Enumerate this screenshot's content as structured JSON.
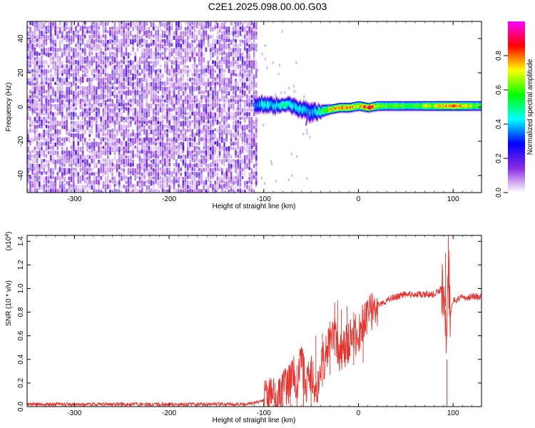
{
  "title": "C2E1.2025.098.00.00.G03",
  "chart_data": [
    {
      "type": "heatmap",
      "xlabel": "Height of straight line (km)",
      "ylabel": "Frequency (Hz)",
      "xlim": [
        -350,
        130
      ],
      "ylim": [
        -50,
        50
      ],
      "xticks": [
        -300,
        -200,
        -100,
        0,
        100
      ],
      "yticks": [
        -40,
        -20,
        0,
        20,
        40
      ],
      "noise_region_x": [
        -350,
        -108
      ],
      "signal_band": {
        "x": [
          -110,
          -100,
          -90,
          -80,
          -70,
          -60,
          -50,
          -40,
          -30,
          -20,
          -10,
          0,
          10,
          20,
          40,
          60,
          80,
          100,
          130
        ],
        "center_freq": [
          2,
          2,
          1,
          2,
          1,
          -1,
          -3,
          -2,
          -1,
          0,
          0,
          1,
          0,
          1,
          1,
          1,
          1,
          1,
          1
        ],
        "halfwidth": [
          4,
          4,
          4,
          3,
          4,
          4,
          5,
          3,
          2,
          2,
          2,
          2,
          2,
          2,
          2,
          2,
          2,
          2,
          2
        ],
        "peak_amplitude": [
          0.35,
          0.45,
          0.4,
          0.5,
          0.45,
          0.45,
          0.35,
          0.55,
          0.75,
          0.85,
          0.8,
          0.7,
          0.95,
          0.65,
          0.6,
          0.6,
          0.75,
          0.8,
          0.6
        ]
      },
      "colorbar": {
        "label": "Normalized spectral amplitude",
        "range": [
          0,
          1
        ],
        "ticks": [
          "0.0",
          "0.2",
          "0.4",
          "0.6",
          "0.8"
        ],
        "colors": [
          "#ffffff",
          "#8a2be2",
          "#0000ff",
          "#00ffff",
          "#00ff00",
          "#ffff00",
          "#ff0000",
          "#ff00ff"
        ]
      }
    },
    {
      "type": "line",
      "xlabel": "Height of straight line (km)",
      "ylabel": "SNR (10 * v/v)",
      "scale_label": "(x10",
      "scale_exponent": "4",
      "scale_suffix": ")",
      "xlim": [
        -350,
        130
      ],
      "ylim": [
        0,
        1.45
      ],
      "xticks": [
        -300,
        -200,
        -100,
        0,
        100
      ],
      "yticks": [
        "0.0",
        "0.2",
        "0.4",
        "0.6",
        "0.8",
        "1.0",
        "1.2",
        "1.4"
      ],
      "color": "#e8322b",
      "series": [
        {
          "x": [
            -350,
            -120,
            -105,
            -95,
            -85,
            -80,
            -75,
            -70,
            -65,
            -60,
            -55,
            -50,
            -45,
            -40,
            -35,
            -30,
            -25,
            -20,
            -15,
            -10,
            -5,
            0,
            5,
            10,
            15,
            20,
            25,
            30,
            35,
            40,
            50,
            60,
            70,
            80,
            85,
            90,
            93,
            95,
            97,
            100,
            110,
            120,
            130
          ],
          "values": [
            0.02,
            0.02,
            0.04,
            0.08,
            0.1,
            0.12,
            0.18,
            0.28,
            0.22,
            0.35,
            0.18,
            0.3,
            0.1,
            0.35,
            0.4,
            0.55,
            0.6,
            0.45,
            0.5,
            0.55,
            0.6,
            0.62,
            0.7,
            0.78,
            0.82,
            0.86,
            0.88,
            0.9,
            0.92,
            0.93,
            0.95,
            0.95,
            0.95,
            0.95,
            0.98,
            1.0,
            0.6,
            1.1,
            0.75,
            0.9,
            0.92,
            0.93,
            0.93
          ]
        }
      ],
      "spikes": {
        "x": [
          -95,
          -88,
          -80,
          -72,
          -65,
          -58,
          -50,
          -45,
          -38,
          -30,
          -25,
          -22,
          -18,
          -12,
          -5,
          5,
          92,
          93.5,
          95,
          96
        ],
        "values": [
          0.15,
          0.2,
          0.25,
          0.33,
          0.35,
          0.45,
          0.4,
          0.6,
          0.62,
          0.72,
          0.88,
          0.9,
          0.82,
          0.85,
          0.8,
          0.82,
          1.3,
          0.4,
          1.45,
          1.32
        ]
      }
    }
  ]
}
